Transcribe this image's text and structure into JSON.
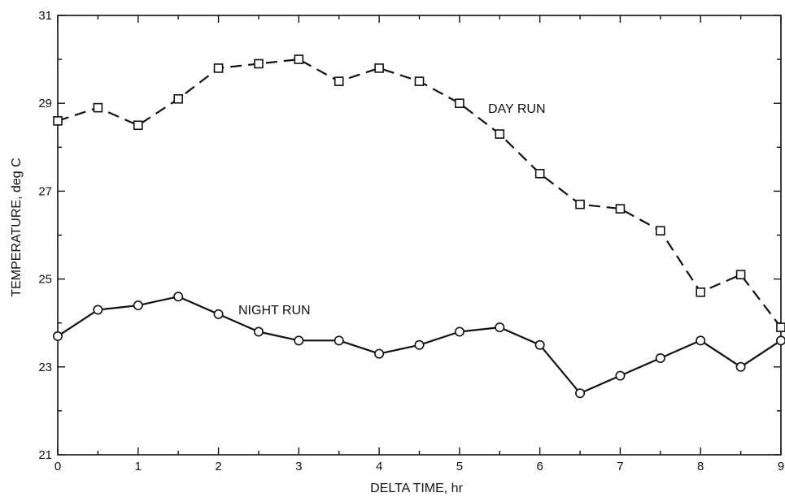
{
  "chart_data": {
    "type": "line",
    "title": "",
    "xlabel": "DELTA TIME, hr",
    "ylabel": "TEMPERATURE, deg C",
    "xlim": [
      0,
      9
    ],
    "ylim": [
      21,
      31
    ],
    "xticks": [
      "0",
      "1",
      "2",
      "3",
      "4",
      "5",
      "6",
      "7",
      "8",
      "9"
    ],
    "yticks": [
      "21",
      "23",
      "25",
      "27",
      "29",
      "31"
    ],
    "grid": false,
    "legend": "none",
    "x": [
      0,
      0.5,
      1,
      1.5,
      2,
      2.5,
      3,
      3.5,
      4,
      4.5,
      5,
      5.5,
      6,
      6.5,
      7,
      7.5,
      8,
      8.5,
      9
    ],
    "series": [
      {
        "name": "DAY RUN",
        "marker": "square",
        "line_style": "dashed",
        "color": "#111111",
        "values": [
          28.6,
          28.9,
          28.5,
          29.1,
          29.8,
          29.9,
          30.0,
          29.5,
          29.8,
          29.5,
          29.0,
          28.3,
          27.4,
          26.7,
          26.6,
          26.1,
          24.7,
          25.1,
          23.9
        ]
      },
      {
        "name": "NIGHT RUN",
        "marker": "circle",
        "line_style": "solid",
        "color": "#111111",
        "values": [
          23.7,
          24.3,
          24.4,
          24.6,
          24.2,
          23.8,
          23.6,
          23.6,
          23.3,
          23.5,
          23.8,
          23.9,
          23.5,
          22.4,
          22.8,
          23.2,
          23.6,
          23.0,
          23.6
        ]
      }
    ]
  }
}
